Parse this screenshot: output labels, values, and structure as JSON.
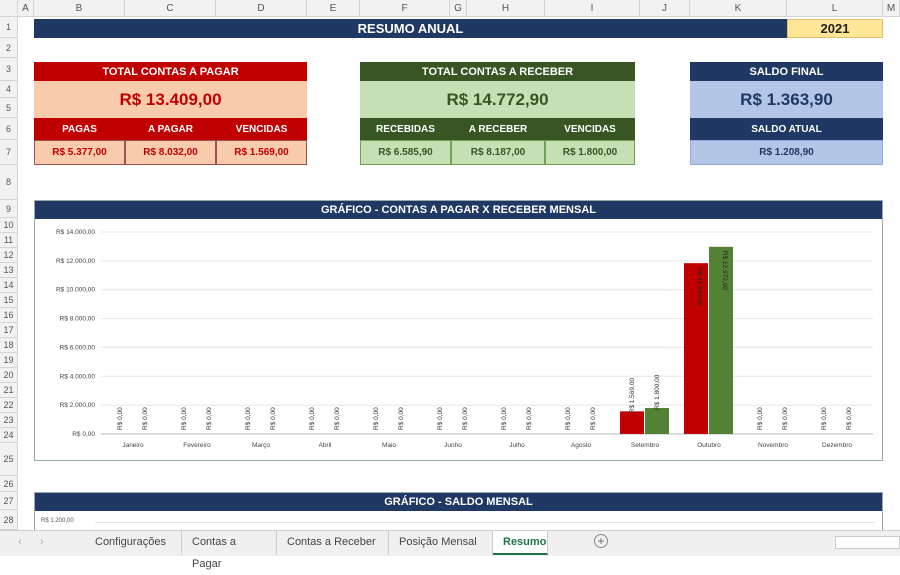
{
  "columns": [
    "A",
    "B",
    "C",
    "D",
    "E",
    "F",
    "G",
    "H",
    "I",
    "J",
    "K",
    "L",
    "M"
  ],
  "rows": [
    "1",
    "2",
    "3",
    "4",
    "5",
    "6",
    "7",
    "8",
    "9",
    "10",
    "11",
    "12",
    "13",
    "14",
    "15",
    "16",
    "17",
    "18",
    "19",
    "20",
    "21",
    "22",
    "23",
    "24",
    "25",
    "26",
    "27",
    "28"
  ],
  "header": {
    "title": "RESUMO ANUAL",
    "year": "2021"
  },
  "pagar": {
    "title": "TOTAL CONTAS A PAGAR",
    "total": "R$ 13.409,00",
    "labels": [
      "PAGAS",
      "A PAGAR",
      "VENCIDAS"
    ],
    "values": [
      "R$ 5.377,00",
      "R$ 8.032,00",
      "R$ 1.569,00"
    ]
  },
  "receber": {
    "title": "TOTAL CONTAS A RECEBER",
    "total": "R$ 14.772,90",
    "labels": [
      "RECEBIDAS",
      "A RECEBER",
      "VENCIDAS"
    ],
    "values": [
      "R$ 6.585,90",
      "R$ 8.187,00",
      "R$ 1.800,00"
    ]
  },
  "saldo": {
    "title": "SALDO FINAL",
    "total": "R$ 1.363,90",
    "sub_label": "SALDO ATUAL",
    "sub_value": "R$ 1.208,90"
  },
  "colors": {
    "navy": "#1f3864",
    "red": "#c00000",
    "red_light": "#f8cbad",
    "green": "#375623",
    "green_light": "#c6e0b4",
    "blue_light": "#b4c6e7",
    "year_bg": "#ffe699"
  },
  "chart_data": {
    "type": "bar",
    "title": "GRÁFICO - CONTAS A PAGAR X RECEBER MENSAL",
    "categories": [
      "Janeiro",
      "Fevereiro",
      "Março",
      "Abril",
      "Maio",
      "Junho",
      "Julho",
      "Agosto",
      "Setembro",
      "Outubro",
      "Novembro",
      "Dezembro"
    ],
    "series": [
      {
        "color": "#c00000",
        "values": [
          0,
          0,
          0,
          0,
          0,
          0,
          0,
          0,
          1569,
          11840,
          0,
          0
        ],
        "labels": [
          "R$ 0,00",
          "R$ 0,00",
          "R$ 0,00",
          "R$ 0,00",
          "R$ 0,00",
          "R$ 0,00",
          "R$ 0,00",
          "R$ 0,00",
          "R$ 1.569,00",
          "R$ 11.840,00",
          "R$ 0,00",
          "R$ 0,00"
        ]
      },
      {
        "color": "#548235",
        "values": [
          0,
          0,
          0,
          0,
          0,
          0,
          0,
          0,
          1800,
          12972.9,
          0,
          0
        ],
        "labels": [
          "R$ 0,00",
          "R$ 0,00",
          "R$ 0,00",
          "R$ 0,00",
          "R$ 0,00",
          "R$ 0,00",
          "R$ 0,00",
          "R$ 0,00",
          "R$ 1.800,00",
          "R$ 12.972,90",
          "R$ 0,00",
          "R$ 0,00"
        ]
      }
    ],
    "ylim": [
      0,
      14000
    ],
    "yticks": [
      "R$ 0,00",
      "R$ 2.000,00",
      "R$ 4.000,00",
      "R$ 6.000,00",
      "R$ 8.000,00",
      "R$ 10.000,00",
      "R$ 12.000,00",
      "R$ 14.000,00"
    ],
    "grid": true
  },
  "chart2": {
    "title": "GRÁFICO - SALDO MENSAL",
    "first_tick": "R$ 1.200,00"
  },
  "sheets": [
    "Configurações",
    "Contas a Pagar",
    "Contas a Receber",
    "Posição Mensal",
    "Resumo"
  ],
  "active_sheet": "Resumo"
}
